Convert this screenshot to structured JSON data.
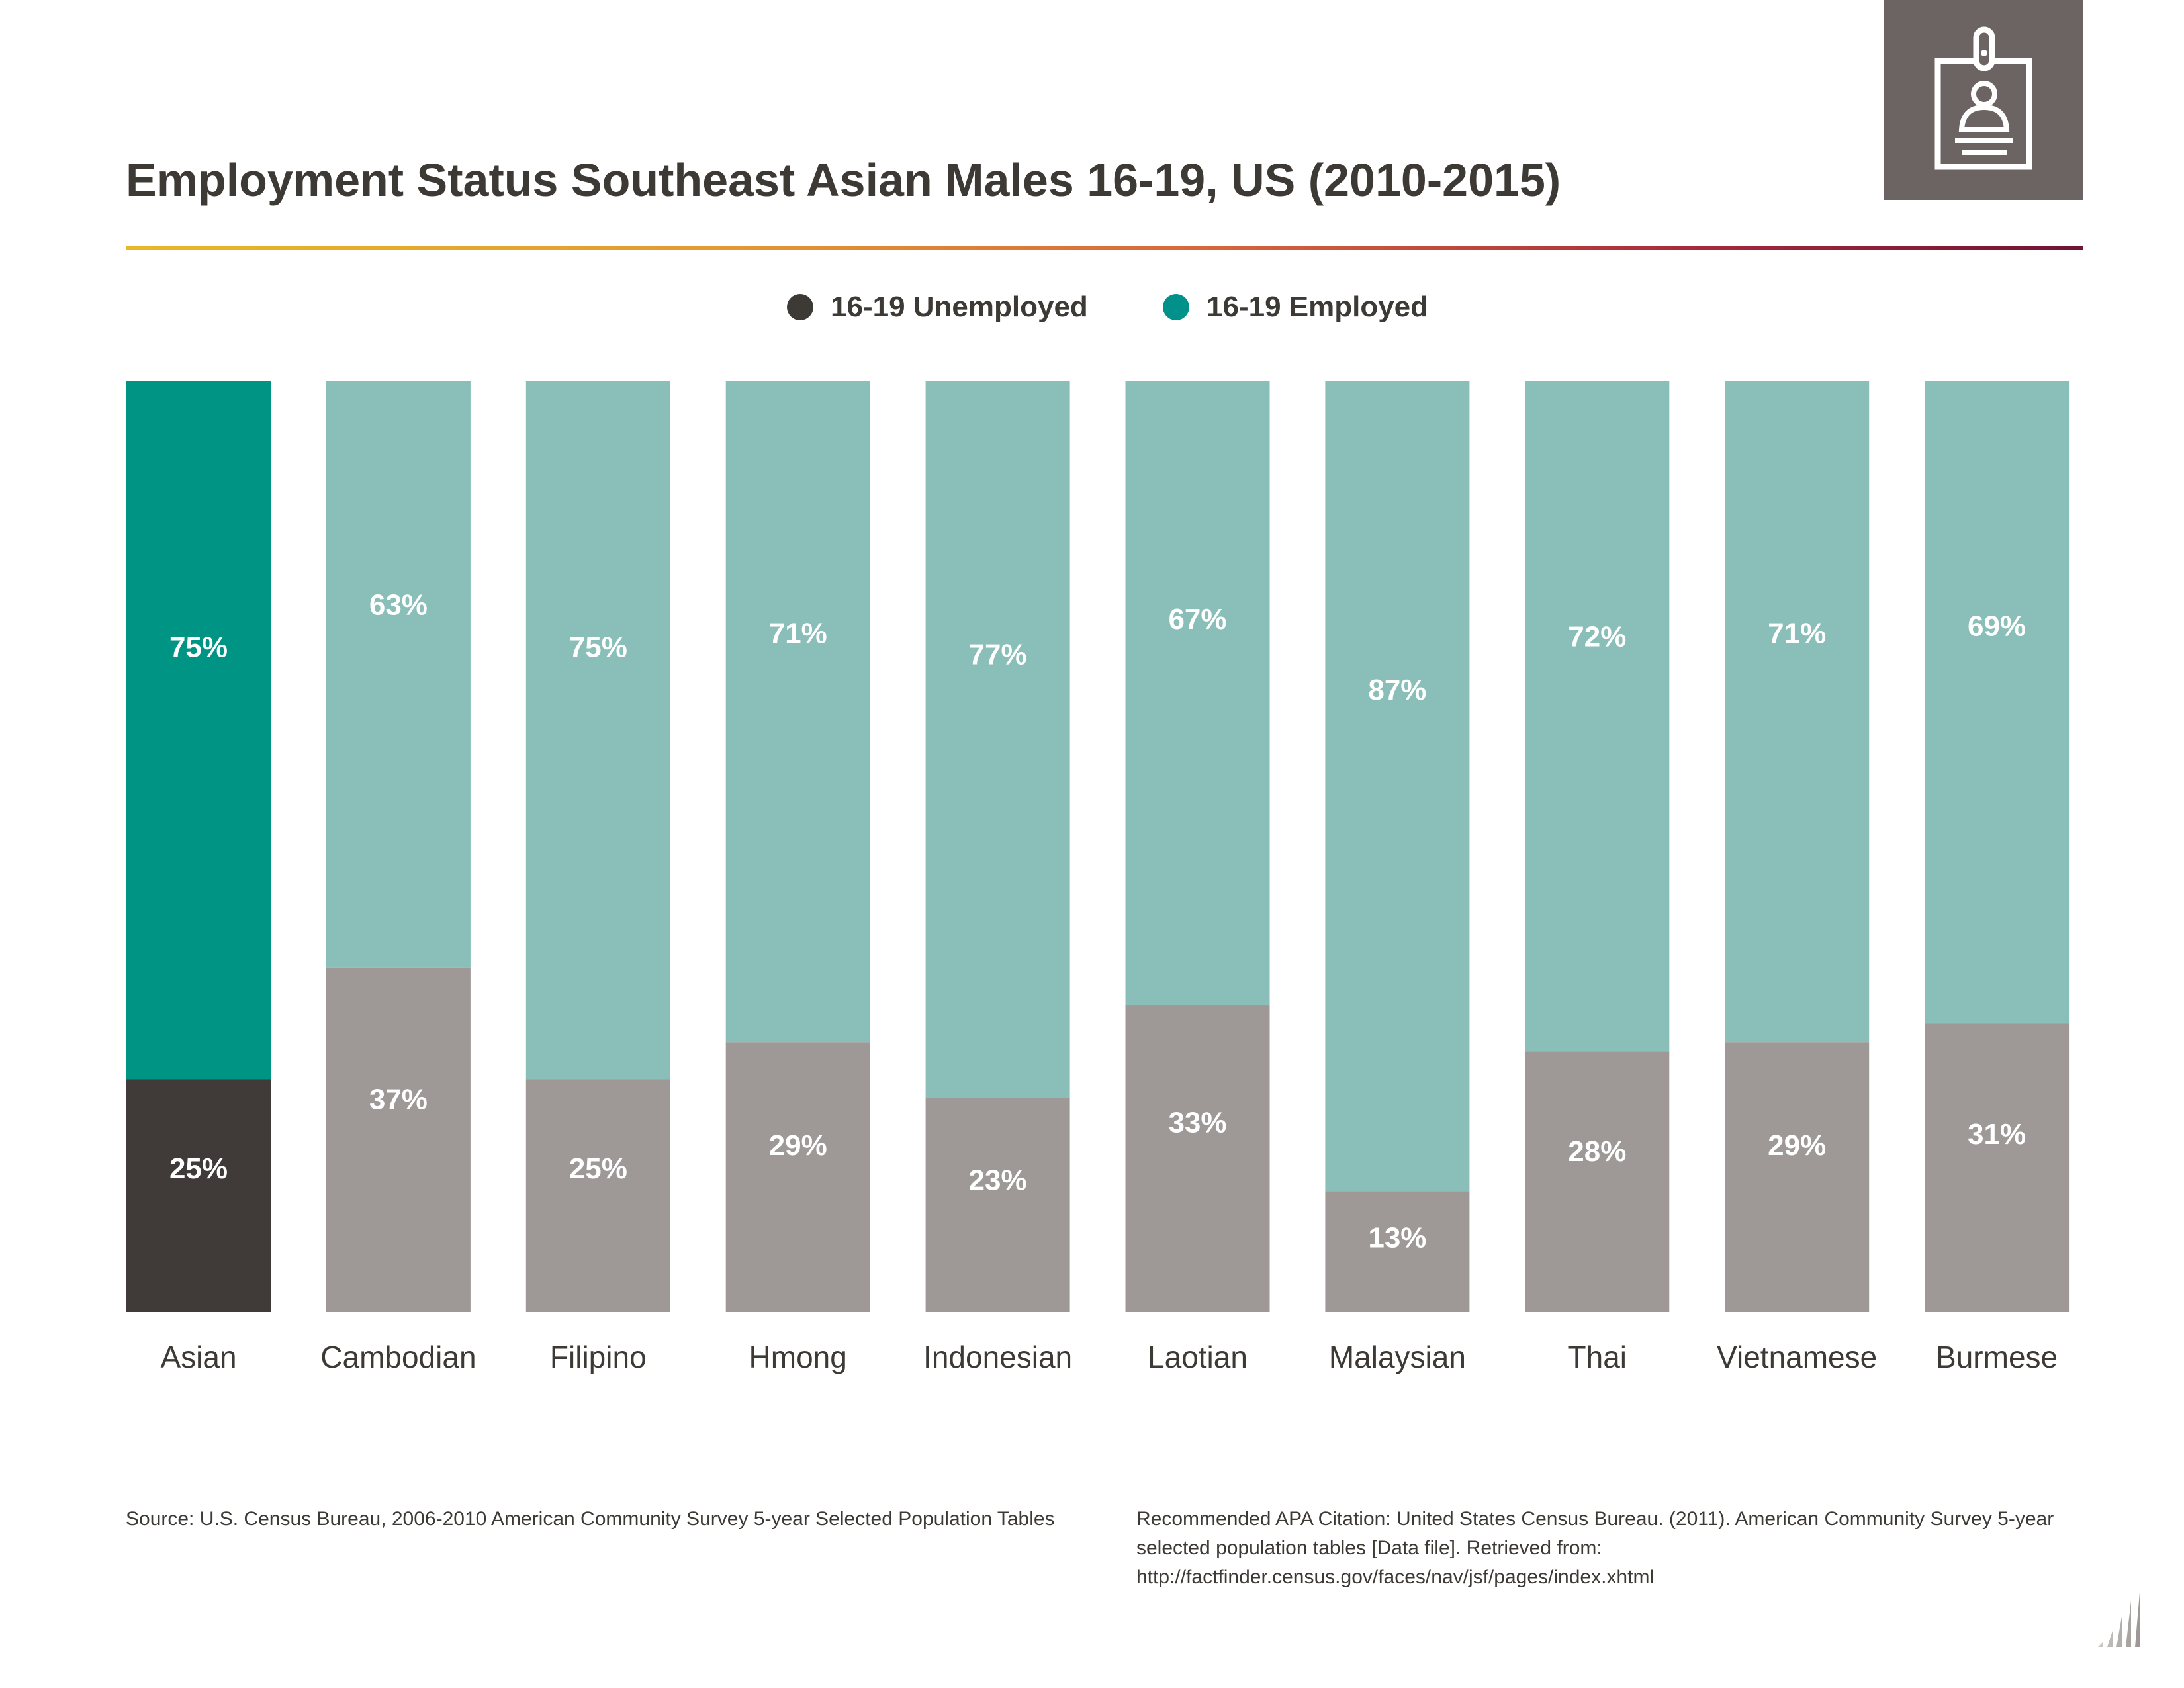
{
  "header": {
    "title": "Employment Status Southeast Asian Males 16-19, US (2010-2015)",
    "icon": "id-badge-icon"
  },
  "legend": {
    "unemployed_label": "16-19 Unemployed",
    "employed_label": "16-19 Employed"
  },
  "colors": {
    "highlight_employed": "#009485",
    "highlight_unemployed": "#403b38",
    "employed": "#89bfb8",
    "unemployed": "#9e9997",
    "legend_unemployed_dot": "#3d3935",
    "legend_employed_dot": "#00918a"
  },
  "chart_data": {
    "type": "bar",
    "stacked": true,
    "categories": [
      "Asian",
      "Cambodian",
      "Filipino",
      "Hmong",
      "Indonesian",
      "Laotian",
      "Malaysian",
      "Thai",
      "Vietnamese",
      "Burmese"
    ],
    "series": [
      {
        "name": "16-19 Unemployed",
        "values": [
          25,
          37,
          25,
          29,
          23,
          33,
          13,
          28,
          29,
          31
        ]
      },
      {
        "name": "16-19 Employed",
        "values": [
          75,
          63,
          75,
          71,
          77,
          67,
          87,
          72,
          71,
          69
        ]
      }
    ],
    "highlighted_category": "Asian",
    "ylim": [
      0,
      100
    ],
    "unit": "%",
    "grid": false,
    "legend_position": "top-center"
  },
  "footer": {
    "source": "Source:  U.S. Census Bureau, 2006-2010 American Community Survey 5-year Selected Population Tables",
    "citation": "Recommended APA Citation: United States Census Bureau. (2011). American Community Survey 5-year selected population tables [Data file]. Retrieved from: http://factfinder.census.gov/faces/nav/jsf/pages/index.xhtml"
  }
}
